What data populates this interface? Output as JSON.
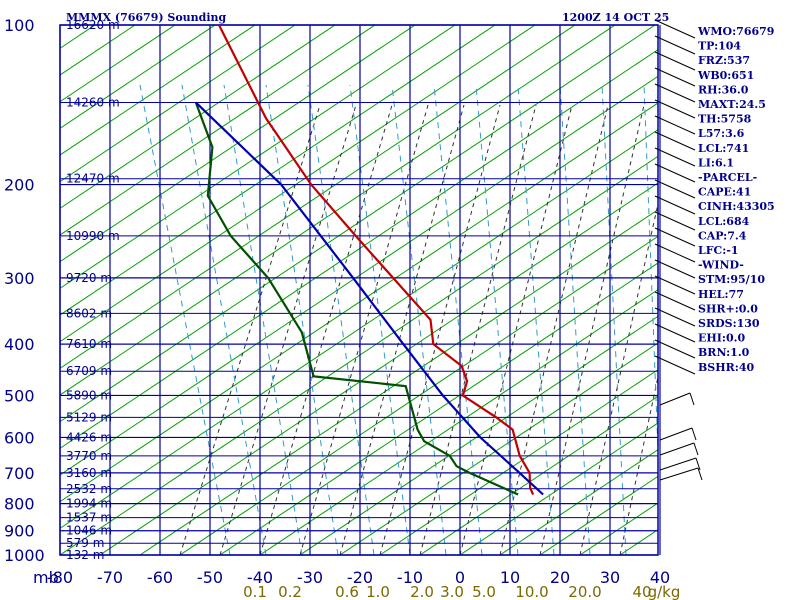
{
  "chart_data": {
    "type": "skew-t sounding",
    "title": "MMMX (76679) Sounding",
    "datetime": "1200Z 14 OCT 25",
    "pressure_axis_unit": "mb",
    "pressure_levels": [
      100,
      200,
      300,
      400,
      500,
      600,
      700,
      800,
      900,
      1000
    ],
    "temp_ticks": [
      -80,
      -70,
      -60,
      -50,
      -40,
      -30,
      -20,
      -10,
      0,
      10,
      20,
      30,
      40
    ],
    "mixing_ratio_unit": "g/kg",
    "mixing_ratio_labels": [
      "0.1",
      "0.2",
      "0.6",
      "1.0",
      "2.0",
      "3.0",
      "5.0",
      "10.0",
      "20.0",
      "40"
    ],
    "height_labels": [
      {
        "text": "16620 m",
        "p": 100
      },
      {
        "text": "14260 m",
        "p": 140
      },
      {
        "text": "12470 m",
        "p": 195
      },
      {
        "text": "10990 m",
        "p": 250
      },
      {
        "text": "9720 m",
        "p": 300
      },
      {
        "text": "8602 m",
        "p": 350
      },
      {
        "text": "7610 m",
        "p": 400
      },
      {
        "text": "6709 m",
        "p": 450
      },
      {
        "text": "5890 m",
        "p": 500
      },
      {
        "text": "5129 m",
        "p": 550
      },
      {
        "text": "4426 m",
        "p": 600
      },
      {
        "text": "3770 m",
        "p": 650
      },
      {
        "text": "3160 m",
        "p": 700
      },
      {
        "text": "2532 m",
        "p": 750
      },
      {
        "text": "1994 m",
        "p": 800
      },
      {
        "text": "1537 m",
        "p": 850
      },
      {
        "text": "1046 m",
        "p": 900
      },
      {
        "text": "579 m",
        "p": 950
      },
      {
        "text": "132 m",
        "p": 1000
      }
    ],
    "series": [
      {
        "name": "temperature",
        "color": "#c00000",
        "points": [
          [
            769,
            11
          ],
          [
            747,
            10
          ],
          [
            700,
            9
          ],
          [
            650,
            6
          ],
          [
            580,
            3
          ],
          [
            550,
            -1
          ],
          [
            500,
            -9
          ],
          [
            470,
            -9
          ],
          [
            440,
            -11
          ],
          [
            400,
            -18
          ],
          [
            360,
            -20
          ],
          [
            300,
            -30
          ],
          [
            250,
            -40
          ],
          [
            200,
            -52
          ],
          [
            150,
            -65
          ],
          [
            100,
            -80
          ]
        ]
      },
      {
        "name": "dewpoint",
        "color": "#005000",
        "points": [
          [
            769,
            8
          ],
          [
            700,
            -3
          ],
          [
            680,
            -6
          ],
          [
            650,
            -8
          ],
          [
            610,
            -14
          ],
          [
            580,
            -16
          ],
          [
            480,
            -21
          ],
          [
            460,
            -40
          ],
          [
            380,
            -45
          ],
          [
            300,
            -55
          ],
          [
            250,
            -65
          ],
          [
            210,
            -72
          ],
          [
            170,
            -74
          ],
          [
            140,
            -80
          ]
        ]
      },
      {
        "name": "parcel",
        "color": "#0000b0",
        "points": [
          [
            769,
            13
          ],
          [
            700,
            7
          ],
          [
            600,
            -3
          ],
          [
            500,
            -13
          ],
          [
            400,
            -24
          ],
          [
            300,
            -38
          ],
          [
            200,
            -58
          ],
          [
            140,
            -80
          ]
        ]
      }
    ],
    "wind_barbs_note": "wind barbs plotted along right edge"
  },
  "indices": [
    "WMO:76679",
    "TP:104",
    "FRZ:537",
    "WB0:651",
    "RH:36.0",
    "MAXT:24.5",
    "TH:5758",
    "L57:3.6",
    "LCL:741",
    "LI:6.1",
    "-PARCEL-",
    "CAPE:41",
    "CINH:43305",
    "LCL:684",
    "CAP:7.4",
    "LFC:-1",
    "-WIND-",
    "STM:95/10",
    "HEL:77",
    "SHR+:0.0",
    "SRDS:130",
    "EHI:0.0",
    "BRN:1.0",
    "BSHR:40"
  ],
  "colors": {
    "grid": "#0000a0",
    "dry_adiabat": "#00a000",
    "moist_adiabat": "#303030",
    "mixing_ratio": "#3399cc",
    "text": "#00008b"
  }
}
